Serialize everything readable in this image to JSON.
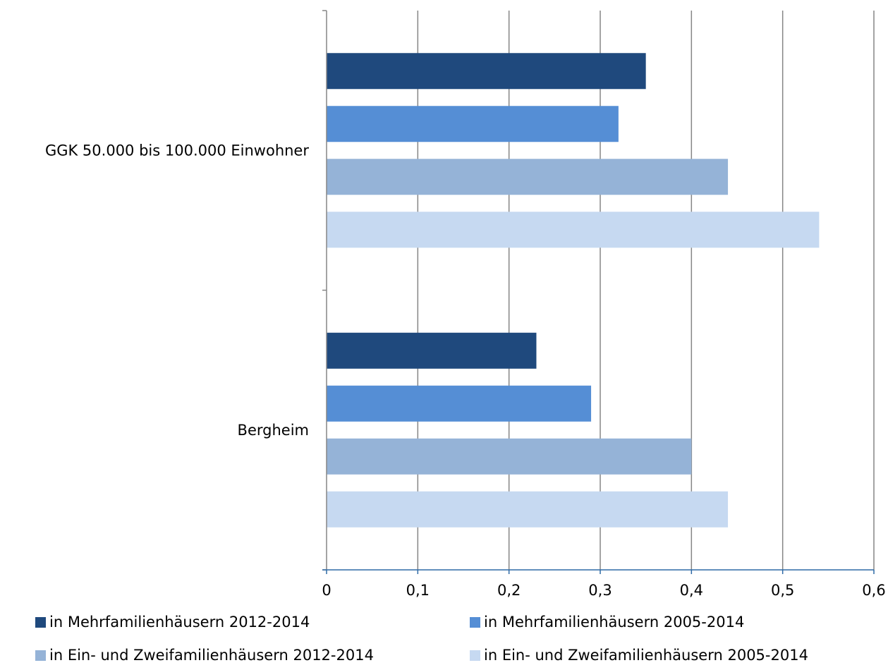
{
  "chart_data": {
    "type": "bar",
    "orientation": "horizontal",
    "categories": [
      "GGK 50.000 bis 100.000 Einwohner",
      "Bergheim"
    ],
    "series": [
      {
        "name": "in Mehrfamilienhäusern 2012-2014",
        "color": "#1F497D",
        "values": [
          0.35,
          0.23
        ]
      },
      {
        "name": "in Mehrfamilienhäusern 2005-2014",
        "color": "#558ED5",
        "values": [
          0.32,
          0.29
        ]
      },
      {
        "name": "in Ein- und Zweifamilienhäusern 2012-2014",
        "color": "#95B3D7",
        "values": [
          0.44,
          0.4
        ]
      },
      {
        "name": "in Ein- und Zweifamilienhäusern 2005-2014",
        "color": "#C6D9F1",
        "values": [
          0.54,
          0.44
        ]
      }
    ],
    "xlim": [
      0,
      0.6
    ],
    "xticks": [
      "0",
      "0,1",
      "0,2",
      "0,3",
      "0,4",
      "0,5",
      "0,6"
    ],
    "grid": true,
    "legend_position": "bottom",
    "title": "",
    "xlabel": "",
    "ylabel": ""
  }
}
